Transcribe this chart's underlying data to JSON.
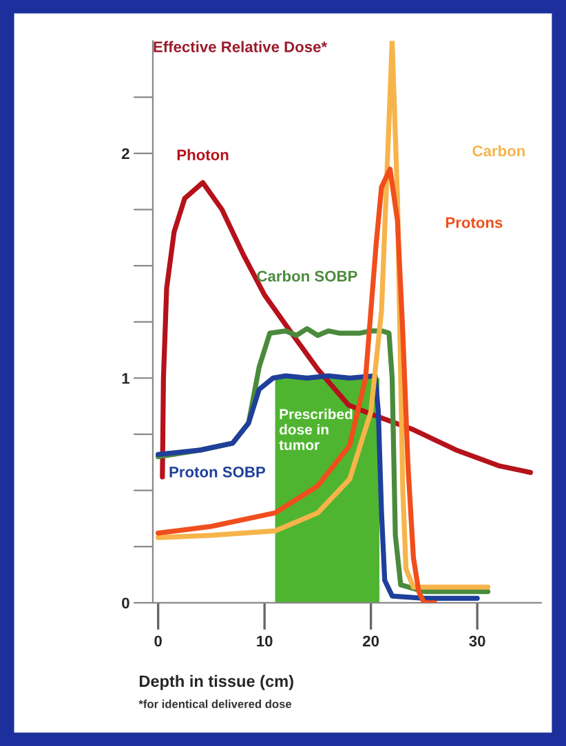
{
  "chart_data": {
    "type": "line",
    "ylabel": "Effective Relative Dose*",
    "xlabel": "Depth in tissue (cm)",
    "xlim": [
      -0.5,
      36
    ],
    "xticks": [
      0,
      10,
      20,
      30
    ],
    "ylim": [
      0,
      2.5
    ],
    "yticks": [
      0,
      {
        "value": 0.25,
        "label": null
      },
      {
        "value": 0.5,
        "label": null
      },
      {
        "value": 0.75,
        "label": null
      },
      1,
      {
        "value": 1.25,
        "label": null
      },
      {
        "value": 1.5,
        "label": null
      },
      {
        "value": 1.75,
        "label": null
      },
      2,
      {
        "value": 2.25,
        "label": null
      }
    ],
    "grid": false,
    "legend": false,
    "series": [
      {
        "type": "area",
        "color": "#4fb530",
        "x": [
          11,
          20.8
        ],
        "values": [
          1.0,
          1.0
        ]
      },
      {
        "name": "Photon",
        "color": "#b5121b",
        "x": [
          0.4,
          0.5,
          0.8,
          1.5,
          2.5,
          4.2,
          6,
          8,
          10,
          12.7,
          15,
          17.9,
          20,
          24,
          28,
          32,
          35
        ],
        "values": [
          0.56,
          1.0,
          1.4,
          1.65,
          1.8,
          1.87,
          1.75,
          1.55,
          1.37,
          1.19,
          1.04,
          0.88,
          0.84,
          0.77,
          0.68,
          0.61,
          0.58
        ]
      },
      {
        "name": "Carbon SOBP",
        "color": "#4a8a3c",
        "x": [
          0,
          4,
          7,
          8.5,
          9.5,
          10.5,
          12,
          13,
          14,
          15,
          16,
          17,
          18,
          19,
          20,
          21,
          21.7,
          22,
          22.3,
          22.8,
          25,
          31
        ],
        "values": [
          0.65,
          0.68,
          0.71,
          0.8,
          1.05,
          1.2,
          1.21,
          1.19,
          1.22,
          1.19,
          1.21,
          1.2,
          1.2,
          1.2,
          1.21,
          1.21,
          1.2,
          1.0,
          0.3,
          0.08,
          0.05,
          0.05
        ]
      },
      {
        "name": "Proton SOBP",
        "color": "#1f3f9a",
        "x": [
          0,
          4,
          7,
          8.5,
          9.5,
          10.8,
          12,
          14,
          16,
          18,
          20.4,
          20.7,
          21,
          21.3,
          22,
          25,
          30
        ],
        "values": [
          0.66,
          0.68,
          0.71,
          0.8,
          0.95,
          1.0,
          1.01,
          1.0,
          1.01,
          1.0,
          1.01,
          0.85,
          0.4,
          0.1,
          0.03,
          0.02,
          0.02
        ]
      },
      {
        "name": "Carbon",
        "color": "#f7b44a",
        "x": [
          0,
          5,
          11,
          15,
          18,
          20,
          21,
          21.5,
          22,
          22.5,
          22.8,
          23,
          23.3,
          24,
          31
        ],
        "values": [
          0.29,
          0.3,
          0.32,
          0.4,
          0.55,
          0.85,
          1.3,
          1.9,
          2.5,
          1.8,
          1.0,
          0.5,
          0.15,
          0.07,
          0.07
        ]
      },
      {
        "name": "Protons",
        "color": "#f04e1c",
        "x": [
          0,
          5,
          11,
          15,
          18,
          19.5,
          20.5,
          21,
          21.8,
          22.5,
          23,
          23.5,
          24,
          24.5,
          25,
          26
        ],
        "values": [
          0.31,
          0.34,
          0.4,
          0.52,
          0.7,
          1.0,
          1.6,
          1.85,
          1.93,
          1.7,
          1.2,
          0.6,
          0.2,
          0.05,
          0.0,
          0.0
        ]
      }
    ],
    "annotations": [
      "Prescribed\ndose in\ntumor",
      "*for identical delivered dose"
    ]
  }
}
